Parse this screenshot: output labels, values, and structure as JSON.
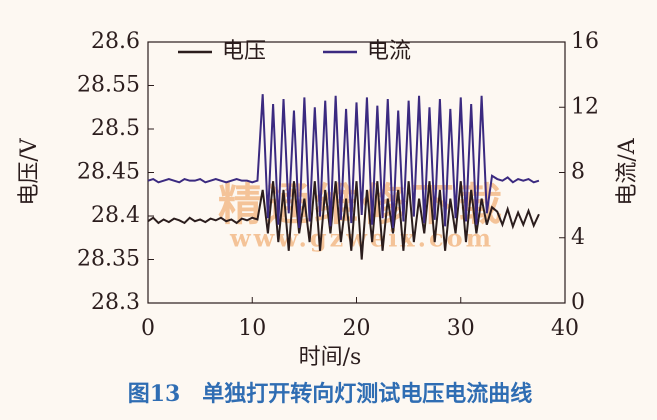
{
  "chart_data": {
    "type": "line",
    "caption": "图13　单独打开转向灯测试电压电流曲线",
    "watermark": "精通维修下载",
    "watermark_url": "www.gzweix.com",
    "xlabel": "时间/s",
    "ylabel": "电压/V",
    "y2label": "电流/A",
    "x": [
      0,
      0.5,
      1,
      1.5,
      2,
      2.5,
      3,
      3.5,
      4,
      4.5,
      5,
      5.5,
      6,
      6.5,
      7,
      7.5,
      8,
      8.5,
      9,
      9.5,
      10,
      10.5,
      11,
      11.5,
      12,
      12.5,
      13,
      13.5,
      14,
      14.5,
      15,
      15.5,
      16,
      16.5,
      17,
      17.5,
      18,
      18.5,
      19,
      19.5,
      20,
      20.5,
      21,
      21.5,
      22,
      22.5,
      23,
      23.5,
      24,
      24.5,
      25,
      25.5,
      26,
      26.5,
      27,
      27.5,
      28,
      28.5,
      29,
      29.5,
      30,
      30.5,
      31,
      31.5,
      32,
      32.5,
      33,
      33.5,
      34,
      34.5,
      35,
      35.5,
      36,
      36.5,
      37,
      37.5
    ],
    "series": [
      {
        "name": "电压",
        "color": "#2b1d1d",
        "values": [
          28.394,
          28.398,
          28.392,
          28.396,
          28.393,
          28.397,
          28.395,
          28.392,
          28.398,
          28.394,
          28.396,
          28.393,
          28.397,
          28.395,
          28.398,
          28.394,
          28.396,
          28.392,
          28.397,
          28.395,
          28.398,
          28.396,
          28.43,
          28.38,
          28.44,
          28.37,
          28.43,
          28.36,
          28.44,
          28.38,
          28.42,
          28.37,
          28.44,
          28.36,
          28.43,
          28.38,
          28.44,
          28.37,
          28.42,
          28.36,
          28.44,
          28.35,
          28.43,
          28.37,
          28.44,
          28.36,
          28.42,
          28.38,
          28.43,
          28.36,
          28.44,
          28.37,
          28.42,
          28.38,
          28.44,
          28.37,
          28.43,
          28.36,
          28.42,
          28.38,
          28.44,
          28.37,
          28.43,
          28.38,
          28.42,
          28.39,
          28.41,
          28.405,
          28.39,
          28.408,
          28.388,
          28.404,
          28.39,
          28.406,
          28.389,
          28.402
        ]
      },
      {
        "name": "电流",
        "color": "#3b2a80",
        "axis": "y2",
        "values": [
          7.5,
          7.6,
          7.4,
          7.5,
          7.6,
          7.5,
          7.4,
          7.6,
          7.5,
          7.5,
          7.6,
          7.4,
          7.5,
          7.6,
          7.5,
          7.4,
          7.5,
          7.6,
          7.5,
          7.5,
          7.4,
          7.5,
          12.8,
          5.2,
          12.2,
          4.8,
          12.5,
          5.5,
          11.8,
          4.6,
          12.6,
          5.0,
          12.0,
          5.3,
          12.4,
          4.7,
          12.7,
          5.1,
          11.9,
          4.9,
          12.3,
          5.4,
          12.6,
          4.8,
          12.1,
          5.2,
          12.5,
          4.6,
          11.8,
          5.0,
          12.4,
          5.3,
          12.7,
          4.9,
          12.0,
          5.1,
          12.5,
          4.7,
          11.9,
          5.2,
          12.6,
          5.0,
          12.2,
          4.8,
          12.7,
          5.5,
          7.8,
          7.6,
          7.5,
          7.7,
          7.4,
          7.6,
          7.5,
          7.6,
          7.4,
          7.5
        ]
      }
    ],
    "xlim": [
      0,
      40
    ],
    "xticks": [
      0,
      10,
      20,
      30,
      40
    ],
    "ylim": [
      28.3,
      28.6
    ],
    "yticks": [
      28.3,
      28.35,
      28.4,
      28.45,
      28.5,
      28.55,
      28.6
    ],
    "y2lim": [
      0,
      16
    ],
    "y2ticks": [
      0,
      4,
      8,
      12,
      16
    ],
    "legend": "top"
  }
}
